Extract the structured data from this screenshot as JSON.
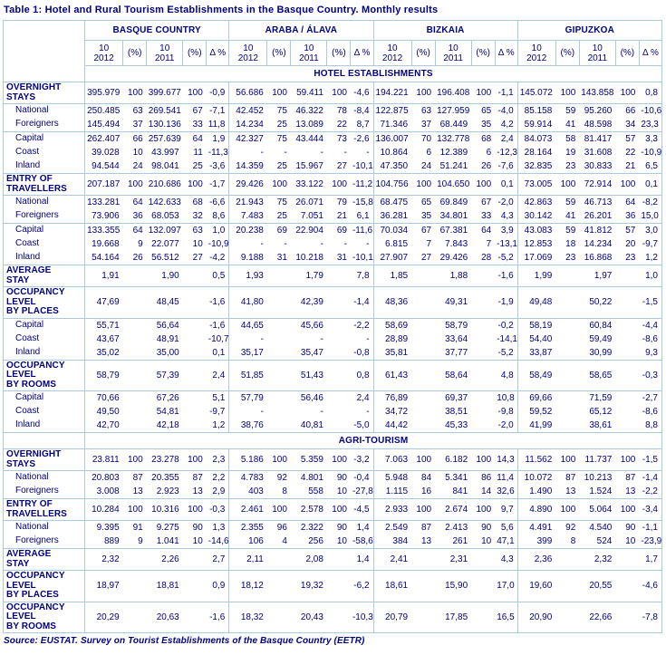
{
  "title": "Table 1: Hotel and Rural Tourism Establishments in the Basque Country. Monthly results",
  "source": "Source: EUSTAT. Survey on Tourist Establishments of the Basque Country (EETR)",
  "colors": {
    "text_navy": "#000080",
    "border_light_blue": "#a9cbdf",
    "background": "#ffffff"
  },
  "table": {
    "region_groups": [
      "BASQUE COUNTRY",
      "ARABA / ÁLAVA",
      "BIZKAIA",
      "GIPUZKOA"
    ],
    "period_columns": [
      [
        "10",
        "2012"
      ],
      [
        "(%)"
      ],
      [
        "10",
        "2011"
      ],
      [
        "(%)"
      ],
      [
        "Δ %"
      ]
    ],
    "sections": [
      {
        "band": "HOTEL ESTABLISHMENTS",
        "rows": [
          {
            "label": [
              "OVERNIGHT",
              "STAYS"
            ],
            "style": "section",
            "rule": true,
            "cells": [
              "395.979",
              "100",
              "399.677",
              "100",
              "-0,9",
              "56.686",
              "100",
              "59.411",
              "100",
              "-4,6",
              "194.221",
              "100",
              "196.408",
              "100",
              "-1,1",
              "145.072",
              "100",
              "143.858",
              "100",
              "0,8"
            ]
          },
          {
            "label": [
              "National"
            ],
            "style": "sub",
            "rule": true,
            "cells": [
              "250.485",
              "63",
              "269.541",
              "67",
              "-7,1",
              "42.452",
              "75",
              "46.322",
              "78",
              "-8,4",
              "122.875",
              "63",
              "127.959",
              "65",
              "-4,0",
              "85.158",
              "59",
              "95.260",
              "66",
              "-10,6"
            ]
          },
          {
            "label": [
              "Foreigners"
            ],
            "style": "sub",
            "rule": false,
            "cells": [
              "145.494",
              "37",
              "130.136",
              "33",
              "11,8",
              "14.234",
              "25",
              "13.089",
              "22",
              "8,7",
              "71.346",
              "37",
              "68.449",
              "35",
              "4,2",
              "59.914",
              "41",
              "48.598",
              "34",
              "23,3"
            ]
          },
          {
            "label": [
              "Capital"
            ],
            "style": "sub",
            "rule": true,
            "cells": [
              "262.407",
              "66",
              "257.639",
              "64",
              "1,9",
              "42.327",
              "75",
              "43.444",
              "73",
              "-2,6",
              "136.007",
              "70",
              "132.778",
              "68",
              "2,4",
              "84.073",
              "58",
              "81.417",
              "57",
              "3,3"
            ]
          },
          {
            "label": [
              "Coast"
            ],
            "style": "sub",
            "rule": false,
            "cells": [
              "39.028",
              "10",
              "43.997",
              "11",
              "-11,3",
              "-",
              "-",
              "-",
              "-",
              "-",
              "10.864",
              "6",
              "12.389",
              "6",
              "-12,3",
              "28.164",
              "19",
              "31.608",
              "22",
              "-10,9"
            ]
          },
          {
            "label": [
              "Inland"
            ],
            "style": "sub",
            "rule": false,
            "cells": [
              "94.544",
              "24",
              "98.041",
              "25",
              "-3,6",
              "14.359",
              "25",
              "15.967",
              "27",
              "-10,1",
              "47.350",
              "24",
              "51.241",
              "26",
              "-7,6",
              "32.835",
              "23",
              "30.833",
              "21",
              "6,5"
            ]
          },
          {
            "label": [
              "ENTRY OF",
              "TRAVELLERS"
            ],
            "style": "section",
            "rule": true,
            "cells": [
              "207.187",
              "100",
              "210.686",
              "100",
              "-1,7",
              "29.426",
              "100",
              "33.122",
              "100",
              "-11,2",
              "104.756",
              "100",
              "104.650",
              "100",
              "0,1",
              "73.005",
              "100",
              "72.914",
              "100",
              "0,1"
            ]
          },
          {
            "label": [
              "National"
            ],
            "style": "sub",
            "rule": true,
            "cells": [
              "133.281",
              "64",
              "142.633",
              "68",
              "-6,6",
              "21.943",
              "75",
              "26.071",
              "79",
              "-15,8",
              "68.475",
              "65",
              "69.849",
              "67",
              "-2,0",
              "42.863",
              "59",
              "46.713",
              "64",
              "-8,2"
            ]
          },
          {
            "label": [
              "Foreigners"
            ],
            "style": "sub",
            "rule": false,
            "cells": [
              "73.906",
              "36",
              "68.053",
              "32",
              "8,6",
              "7.483",
              "25",
              "7.051",
              "21",
              "6,1",
              "36.281",
              "35",
              "34.801",
              "33",
              "4,3",
              "30.142",
              "41",
              "26.201",
              "36",
              "15,0"
            ]
          },
          {
            "label": [
              "Capital"
            ],
            "style": "sub",
            "rule": true,
            "cells": [
              "133.355",
              "64",
              "132.097",
              "63",
              "1,0",
              "20.238",
              "69",
              "22.904",
              "69",
              "-11,6",
              "70.034",
              "67",
              "67.381",
              "64",
              "3,9",
              "43.083",
              "59",
              "41.812",
              "57",
              "3,0"
            ]
          },
          {
            "label": [
              "Coast"
            ],
            "style": "sub",
            "rule": false,
            "cells": [
              "19.668",
              "9",
              "22.077",
              "10",
              "-10,9",
              "-",
              "-",
              "-",
              "-",
              "-",
              "6.815",
              "7",
              "7.843",
              "7",
              "-13,1",
              "12.853",
              "18",
              "14.234",
              "20",
              "-9,7"
            ]
          },
          {
            "label": [
              "Inland"
            ],
            "style": "sub",
            "rule": false,
            "cells": [
              "54.164",
              "26",
              "56.512",
              "27",
              "-4,2",
              "9.188",
              "31",
              "10.218",
              "31",
              "-10,1",
              "27.907",
              "27",
              "29.426",
              "28",
              "-5,2",
              "17.069",
              "23",
              "16.868",
              "23",
              "1,2"
            ]
          },
          {
            "label": [
              "AVERAGE",
              "STAY"
            ],
            "style": "section",
            "rule": true,
            "cells": [
              "1,91",
              "",
              "1,90",
              "",
              "0,5",
              "1,93",
              "",
              "1,79",
              "",
              "7,8",
              "1,85",
              "",
              "1,88",
              "",
              "-1,6",
              "1,99",
              "",
              "1,97",
              "",
              "1,0"
            ]
          },
          {
            "label": [
              "OCCUPANCY",
              "LEVEL",
              "BY PLACES"
            ],
            "style": "section",
            "rule": true,
            "cells": [
              "47,69",
              "",
              "48,45",
              "",
              "-1,6",
              "41,80",
              "",
              "42,39",
              "",
              "-1,4",
              "48,36",
              "",
              "49,31",
              "",
              "-1,9",
              "49,48",
              "",
              "50,22",
              "",
              "-1,5"
            ]
          },
          {
            "label": [
              "Capital"
            ],
            "style": "sub",
            "rule": true,
            "cells": [
              "55,71",
              "",
              "56,64",
              "",
              "-1,6",
              "44,65",
              "",
              "45,66",
              "",
              "-2,2",
              "58,69",
              "",
              "58,79",
              "",
              "-0,2",
              "58,19",
              "",
              "60,84",
              "",
              "-4,4"
            ]
          },
          {
            "label": [
              "Coast"
            ],
            "style": "sub",
            "rule": false,
            "cells": [
              "43,67",
              "",
              "48,91",
              "",
              "-10,7",
              "-",
              "",
              "-",
              "",
              "-",
              "28,89",
              "",
              "33,64",
              "",
              "-14,1",
              "54,40",
              "",
              "59,49",
              "",
              "-8,6"
            ]
          },
          {
            "label": [
              "Inland"
            ],
            "style": "sub",
            "rule": false,
            "cells": [
              "35,02",
              "",
              "35,00",
              "",
              "0,1",
              "35,17",
              "",
              "35,47",
              "",
              "-0,8",
              "35,81",
              "",
              "37,77",
              "",
              "-5,2",
              "33,87",
              "",
              "30,99",
              "",
              "9,3"
            ]
          },
          {
            "label": [
              "OCCUPANCY",
              "LEVEL",
              "BY ROOMS"
            ],
            "style": "section",
            "rule": true,
            "cells": [
              "58,79",
              "",
              "57,39",
              "",
              "2,4",
              "51,85",
              "",
              "51,43",
              "",
              "0,8",
              "61,43",
              "",
              "58,64",
              "",
              "4,8",
              "58,49",
              "",
              "58,65",
              "",
              "-0,3"
            ]
          },
          {
            "label": [
              "Capital"
            ],
            "style": "sub",
            "rule": true,
            "cells": [
              "70,66",
              "",
              "67,26",
              "",
              "5,1",
              "57,79",
              "",
              "56,46",
              "",
              "2,4",
              "76,89",
              "",
              "69,37",
              "",
              "10,8",
              "69,66",
              "",
              "71,59",
              "",
              "-2,7"
            ]
          },
          {
            "label": [
              "Coast"
            ],
            "style": "sub",
            "rule": false,
            "cells": [
              "49,50",
              "",
              "54,81",
              "",
              "-9,7",
              "-",
              "",
              "-",
              "",
              "-",
              "34,72",
              "",
              "38,51",
              "",
              "-9,8",
              "59,52",
              "",
              "65,12",
              "",
              "-8,6"
            ]
          },
          {
            "label": [
              "Inland"
            ],
            "style": "sub",
            "rule": false,
            "cells": [
              "42,70",
              "",
              "42,18",
              "",
              "1,2",
              "38,76",
              "",
              "40,81",
              "",
              "-5,0",
              "44,42",
              "",
              "45,33",
              "",
              "-2,0",
              "41,99",
              "",
              "38,61",
              "",
              "8,8"
            ]
          }
        ]
      },
      {
        "band": "AGRI-TOURISM",
        "rows": [
          {
            "label": [
              "OVERNIGHT",
              "STAYS"
            ],
            "style": "section",
            "rule": true,
            "cells": [
              "23.811",
              "100",
              "23.278",
              "100",
              "2,3",
              "5.186",
              "100",
              "5.359",
              "100",
              "-3,2",
              "7.063",
              "100",
              "6.182",
              "100",
              "14,3",
              "11.562",
              "100",
              "11.737",
              "100",
              "-1,5"
            ]
          },
          {
            "label": [
              "National"
            ],
            "style": "sub",
            "rule": true,
            "cells": [
              "20.803",
              "87",
              "20.355",
              "87",
              "2,2",
              "4.783",
              "92",
              "4.801",
              "90",
              "-0,4",
              "5.948",
              "84",
              "5.341",
              "86",
              "11,4",
              "10.072",
              "87",
              "10.213",
              "87",
              "-1,4"
            ]
          },
          {
            "label": [
              "Foreigners"
            ],
            "style": "sub",
            "rule": false,
            "cells": [
              "3.008",
              "13",
              "2.923",
              "13",
              "2,9",
              "403",
              "8",
              "558",
              "10",
              "-27,8",
              "1.115",
              "16",
              "841",
              "14",
              "32,6",
              "1.490",
              "13",
              "1.524",
              "13",
              "-2,2"
            ]
          },
          {
            "label": [
              "ENTRY OF",
              "TRAVELLERS"
            ],
            "style": "section",
            "rule": true,
            "cells": [
              "10.284",
              "100",
              "10.316",
              "100",
              "-0,3",
              "2.461",
              "100",
              "2.578",
              "100",
              "-4,5",
              "2.933",
              "100",
              "2.674",
              "100",
              "9,7",
              "4.890",
              "100",
              "5.064",
              "100",
              "-3,4"
            ]
          },
          {
            "label": [
              "National"
            ],
            "style": "sub",
            "rule": true,
            "cells": [
              "9.395",
              "91",
              "9.275",
              "90",
              "1,3",
              "2.355",
              "96",
              "2.322",
              "90",
              "1,4",
              "2.549",
              "87",
              "2.413",
              "90",
              "5,6",
              "4.491",
              "92",
              "4.540",
              "90",
              "-1,1"
            ]
          },
          {
            "label": [
              "Foreigners"
            ],
            "style": "sub",
            "rule": false,
            "cells": [
              "889",
              "9",
              "1.041",
              "10",
              "-14,6",
              "106",
              "4",
              "256",
              "10",
              "-58,6",
              "384",
              "13",
              "261",
              "10",
              "47,1",
              "399",
              "8",
              "524",
              "10",
              "-23,9"
            ]
          },
          {
            "label": [
              "AVERAGE",
              "STAY"
            ],
            "style": "section",
            "rule": true,
            "cells": [
              "2,32",
              "",
              "2,26",
              "",
              "2,7",
              "2,11",
              "",
              "2,08",
              "",
              "1,4",
              "2,41",
              "",
              "2,31",
              "",
              "4,3",
              "2,36",
              "",
              "2,32",
              "",
              "1,7"
            ]
          },
          {
            "label": [
              "OCCUPANCY",
              "LEVEL",
              "BY PLACES"
            ],
            "style": "section",
            "rule": true,
            "cells": [
              "18,97",
              "",
              "18,81",
              "",
              "0,9",
              "18,12",
              "",
              "19,32",
              "",
              "-6,2",
              "18,61",
              "",
              "15,90",
              "",
              "17,0",
              "19,60",
              "",
              "20,55",
              "",
              "-4,6"
            ]
          },
          {
            "label": [
              "OCCUPANCY",
              "LEVEL",
              "BY ROOMS"
            ],
            "style": "section",
            "rule": true,
            "cells": [
              "20,29",
              "",
              "20,63",
              "",
              "-1,6",
              "18,32",
              "",
              "20,43",
              "",
              "-10,3",
              "20,79",
              "",
              "17,85",
              "",
              "16,5",
              "20,90",
              "",
              "22,66",
              "",
              "-7,8"
            ]
          }
        ]
      }
    ]
  }
}
